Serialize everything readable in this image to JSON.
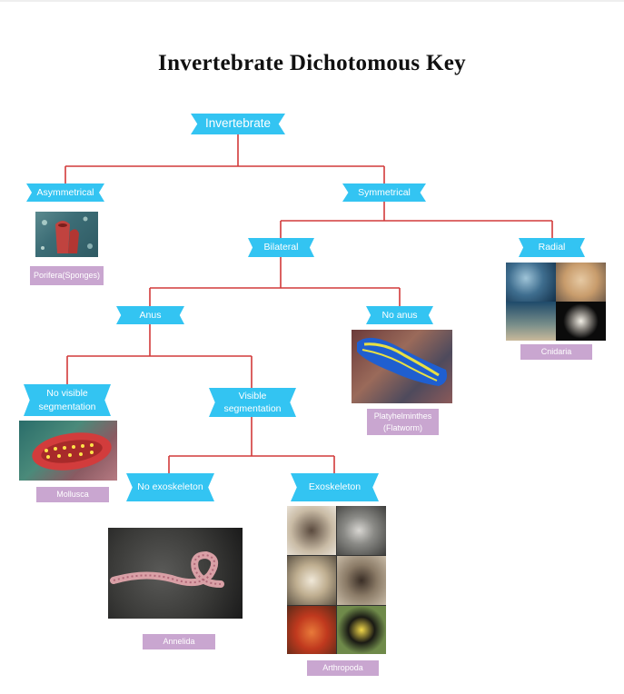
{
  "title": "Invertebrate Dichotomous Key",
  "colors": {
    "node": "#33c4f2",
    "leaf": "#c9a6d0",
    "connector": "#d23a3a"
  },
  "nodes": {
    "invertebrate": "Invertebrate",
    "asymmetrical": "Asymmetrical",
    "symmetrical": "Symmetrical",
    "bilateral": "Bilateral",
    "radial": "Radial",
    "anus": "Anus",
    "no_anus": "No anus",
    "no_visible_segmentation": "No visible segmentation",
    "visible_segmentation": "Visible segmentation",
    "no_exoskeleton": "No exoskeleton",
    "exoskeleton": "Exoskeleton"
  },
  "leaves": {
    "porifera": "Porifera(Sponges)",
    "cnidaria": "Cnidaria",
    "platyhelminthes_line1": "Platyhelminthes",
    "platyhelminthes_line2": "(Flatworm)",
    "mollusca": "Mollusca",
    "annelida": "Annelida",
    "arthropoda": "Arthropoda"
  }
}
